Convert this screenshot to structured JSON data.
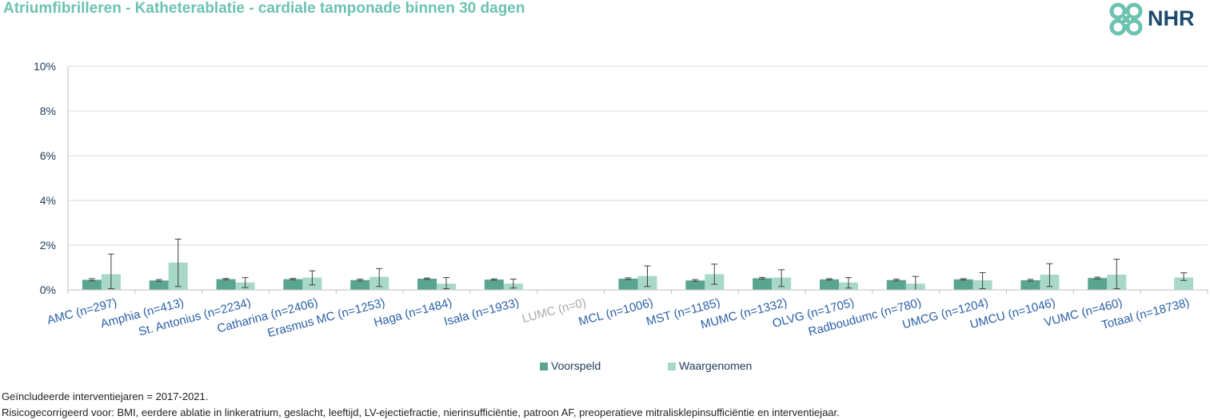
{
  "title": "Atriumfibrilleren - Katheterablatie - cardiale tamponade binnen 30 dagen",
  "logo": {
    "text": "NHR",
    "icon": "nhr-knot-logo"
  },
  "colors": {
    "title": "#6cc3b0",
    "voorspeld": "#5aa58f",
    "waargenomen": "#a8d8c9",
    "axis_text": "#1c3a5a",
    "category_text": "#2a5fa8",
    "muted_category": "#a8a8a8"
  },
  "legend": {
    "voorspeld": "Voorspeld",
    "waargenomen": "Waargenomen"
  },
  "footnotes": [
    "Geïncludeerde interventiejaren = 2017-2021.",
    "Risicogecorrigeerd voor: BMI, eerdere ablatie in linkeratrium, geslacht, leeftijd, LV-ejectiefractie, nierinsufficiëntie, patroon AF, preoperatieve mitralisklepinsufficiëntie en interventiejaar."
  ],
  "chart_data": {
    "type": "bar",
    "title": "Atriumfibrilleren - Katheterablatie - cardiale tamponade binnen 30 dagen",
    "ylim": [
      0,
      10
    ],
    "yticks": [
      "0%",
      "2%",
      "4%",
      "6%",
      "8%",
      "10%"
    ],
    "grid": true,
    "legend_position": "bottom",
    "categories": [
      "AMC (n=297)",
      "Amphia (n=413)",
      "St. Antonius (n=2234)",
      "Catharina (n=2406)",
      "Erasmus MC (n=1253)",
      "Haga (n=1484)",
      "Isala (n=1933)",
      "LUMC (n=0)",
      "MCL (n=1006)",
      "MST (n=1185)",
      "MUMC (n=1332)",
      "OLVG (n=1705)",
      "Radboudumc (n=780)",
      "UMCG (n=1204)",
      "UMCU (n=1046)",
      "VUMC (n=460)",
      "Totaal (n=18738)"
    ],
    "muted_categories": [
      "LUMC (n=0)"
    ],
    "series": [
      {
        "name": "Voorspeld",
        "values": [
          0.45,
          0.42,
          0.48,
          0.48,
          0.44,
          0.5,
          0.46,
          null,
          0.5,
          0.42,
          0.52,
          0.47,
          0.44,
          0.47,
          0.43,
          0.53,
          null
        ],
        "err_low": [
          0.4,
          0.38,
          0.45,
          0.45,
          0.4,
          0.47,
          0.43,
          null,
          0.46,
          0.38,
          0.48,
          0.44,
          0.4,
          0.44,
          0.39,
          0.49,
          null
        ],
        "err_high": [
          0.5,
          0.46,
          0.51,
          0.51,
          0.48,
          0.53,
          0.49,
          null,
          0.54,
          0.46,
          0.56,
          0.5,
          0.48,
          0.5,
          0.47,
          0.57,
          null
        ]
      },
      {
        "name": "Waargenomen",
        "values": [
          0.7,
          1.22,
          0.33,
          0.55,
          0.58,
          0.28,
          0.28,
          null,
          0.62,
          0.7,
          0.55,
          0.33,
          0.28,
          0.43,
          0.68,
          0.68,
          0.55
        ],
        "err_low": [
          0.05,
          0.15,
          0.1,
          0.22,
          0.15,
          0.05,
          0.08,
          null,
          0.15,
          0.25,
          0.15,
          0.08,
          0.0,
          0.05,
          0.15,
          0.05,
          0.42
        ],
        "err_high": [
          1.6,
          2.27,
          0.55,
          0.85,
          0.95,
          0.55,
          0.48,
          null,
          1.07,
          1.15,
          0.9,
          0.55,
          0.6,
          0.77,
          1.17,
          1.37,
          0.76
        ]
      }
    ]
  }
}
